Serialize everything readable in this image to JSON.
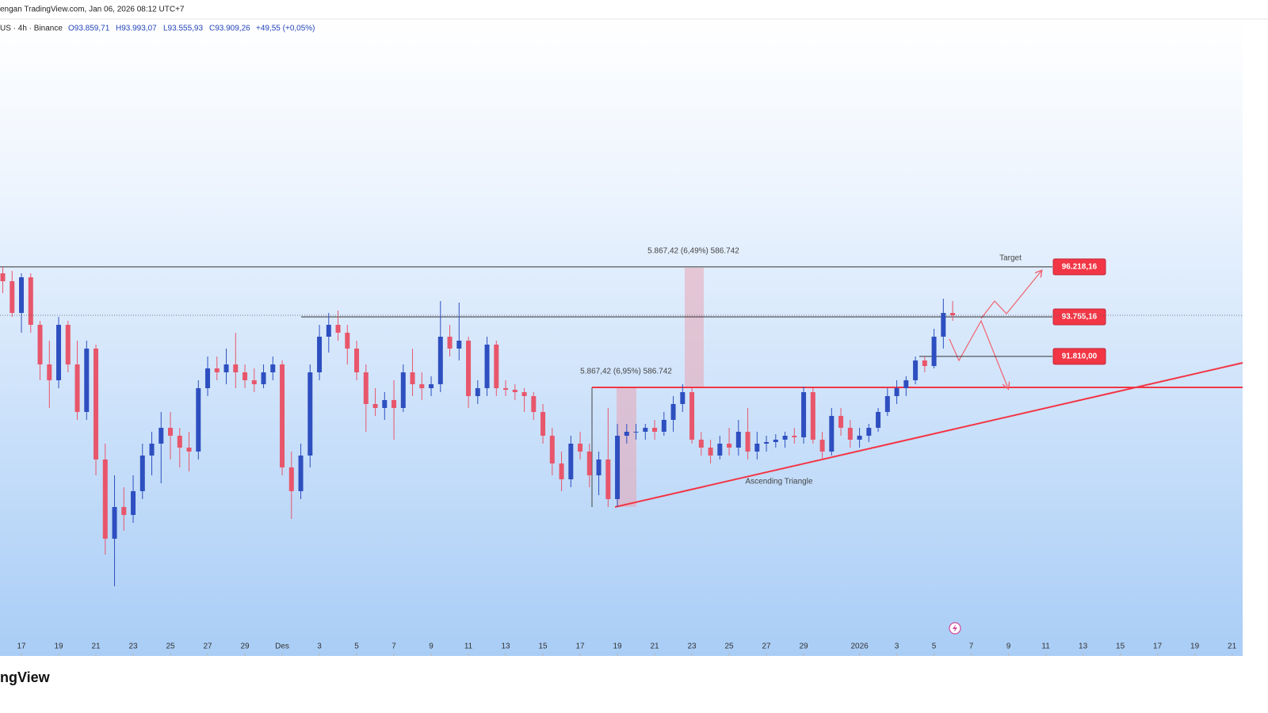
{
  "chart_data": {
    "type": "candlestick",
    "header": {
      "source": "engan TradingView.com, Jan 06, 2026 08:12 UTC+7",
      "symbol": "US · 4h · Binance",
      "open": "O93.859,71",
      "high": "H93.993,07",
      "low": "L93.555,93",
      "close": "C93.909,26",
      "change": "+49,55 (+0,05%)"
    },
    "logo": "ngView",
    "annotations": {
      "measure_top": "5.867,42 (6,49%) 586.742",
      "measure_bottom": "5.867,42 (6,95%) 586.742",
      "target": "Target",
      "pattern": "Ascending Triangle"
    },
    "levels": [
      {
        "label": "96.218,16",
        "value": 96218.16
      },
      {
        "label": "93.755,16",
        "value": 93755.16
      },
      {
        "label": "91.810,00",
        "value": 91810.0
      }
    ],
    "up_color": "#2e4fc0",
    "down_color": "#e8566b",
    "level_color": "#f23645",
    "xlim": [
      -1.15,
      65.57
    ],
    "ylim": [
      77063,
      108380
    ],
    "xticks": [
      {
        "value": 0,
        "label": "17"
      },
      {
        "value": 2,
        "label": "19"
      },
      {
        "value": 4,
        "label": "21"
      },
      {
        "value": 6,
        "label": "23"
      },
      {
        "value": 8,
        "label": "25"
      },
      {
        "value": 10,
        "label": "27"
      },
      {
        "value": 12,
        "label": "29"
      },
      {
        "value": 14,
        "label": "Des"
      },
      {
        "value": 16,
        "label": "3"
      },
      {
        "value": 18,
        "label": "5"
      },
      {
        "value": 20,
        "label": "7"
      },
      {
        "value": 22,
        "label": "9"
      },
      {
        "value": 24,
        "label": "11"
      },
      {
        "value": 26,
        "label": "13"
      },
      {
        "value": 28,
        "label": "15"
      },
      {
        "value": 30,
        "label": "17"
      },
      {
        "value": 32,
        "label": "19"
      },
      {
        "value": 34,
        "label": "21"
      },
      {
        "value": 36,
        "label": "23"
      },
      {
        "value": 38,
        "label": "25"
      },
      {
        "value": 40,
        "label": "27"
      },
      {
        "value": 42,
        "label": "29"
      },
      {
        "value": 45,
        "label": "2026"
      },
      {
        "value": 47,
        "label": "3"
      },
      {
        "value": 49,
        "label": "5"
      },
      {
        "value": 51,
        "label": "7"
      },
      {
        "value": 53,
        "label": "9"
      },
      {
        "value": 55,
        "label": "11"
      },
      {
        "value": 57,
        "label": "13"
      },
      {
        "value": 59,
        "label": "15"
      },
      {
        "value": 61,
        "label": "17"
      },
      {
        "value": 63,
        "label": "19"
      },
      {
        "value": 65,
        "label": "21"
      }
    ],
    "x": [
      -1,
      -0.5,
      0,
      0.5,
      1,
      1.5,
      2,
      2.5,
      3,
      3.5,
      4,
      4.5,
      5,
      5.5,
      6,
      6.5,
      7,
      7.5,
      8,
      8.5,
      9,
      9.5,
      10,
      10.5,
      11,
      11.5,
      12,
      12.5,
      13,
      13.5,
      14,
      14.5,
      15,
      15.5,
      16,
      16.5,
      17,
      17.5,
      18,
      18.5,
      19,
      19.5,
      20,
      20.5,
      21,
      21.5,
      22,
      22.5,
      23,
      23.5,
      24,
      24.5,
      25,
      25.5,
      26,
      26.5,
      27,
      27.5,
      28,
      28.5,
      29,
      29.5,
      30,
      30.5,
      31,
      31.5,
      32,
      32.5,
      33,
      33.5,
      34,
      34.5,
      35,
      35.5,
      36,
      36.5,
      37,
      37.5,
      38,
      38.5,
      39,
      39.5,
      40,
      40.5,
      41,
      41.5,
      42,
      42.5,
      43,
      43.5,
      44,
      44.5,
      45,
      45.5,
      46,
      46.5,
      47,
      47.5,
      48,
      48.5,
      49,
      49.5,
      50
    ],
    "candles": [
      [
        95900,
        96212,
        94925,
        95510
      ],
      [
        95510,
        96017,
        93755,
        93950
      ],
      [
        93950,
        95900,
        92975,
        95705
      ],
      [
        95705,
        95900,
        92975,
        93365
      ],
      [
        93365,
        93560,
        90635,
        91415
      ],
      [
        91415,
        92585,
        89270,
        90635
      ],
      [
        90635,
        93755,
        90245,
        93365
      ],
      [
        93365,
        93560,
        91025,
        91415
      ],
      [
        91415,
        92585,
        88685,
        89075
      ],
      [
        89075,
        92585,
        88685,
        92195
      ],
      [
        92195,
        92390,
        85955,
        86735
      ],
      [
        86735,
        87515,
        82055,
        82835
      ],
      [
        82835,
        85955,
        80495,
        84395
      ],
      [
        84395,
        85370,
        83225,
        84005
      ],
      [
        84005,
        85955,
        83615,
        85175
      ],
      [
        85175,
        87515,
        84785,
        86930
      ],
      [
        86930,
        88100,
        85955,
        87515
      ],
      [
        87515,
        89075,
        85565,
        88295
      ],
      [
        88295,
        89075,
        86735,
        87905
      ],
      [
        87905,
        88295,
        86345,
        87320
      ],
      [
        87320,
        88100,
        86150,
        87125
      ],
      [
        87125,
        90635,
        86735,
        90245
      ],
      [
        90245,
        91805,
        89855,
        91220
      ],
      [
        91220,
        91805,
        90635,
        91025
      ],
      [
        91025,
        92195,
        90440,
        91415
      ],
      [
        91415,
        92975,
        90245,
        91025
      ],
      [
        91025,
        91415,
        90245,
        90635
      ],
      [
        90635,
        91220,
        90050,
        90440
      ],
      [
        90440,
        91415,
        90245,
        91025
      ],
      [
        91025,
        91805,
        90635,
        91415
      ],
      [
        91415,
        91610,
        85955,
        86345
      ],
      [
        86345,
        87125,
        83810,
        85175
      ],
      [
        85175,
        87515,
        84785,
        86930
      ],
      [
        86930,
        91415,
        86345,
        91025
      ],
      [
        91025,
        93365,
        90635,
        92780
      ],
      [
        92780,
        93950,
        92000,
        93365
      ],
      [
        93365,
        94067,
        92585,
        92975
      ],
      [
        92975,
        93365,
        91415,
        92195
      ],
      [
        92195,
        92585,
        90635,
        91025
      ],
      [
        91025,
        91415,
        88100,
        89465
      ],
      [
        89465,
        90245,
        88880,
        89270
      ],
      [
        89270,
        90050,
        88685,
        89660
      ],
      [
        89660,
        90635,
        87710,
        89270
      ],
      [
        89270,
        91415,
        89075,
        91025
      ],
      [
        91025,
        92195,
        89855,
        90440
      ],
      [
        90440,
        91025,
        89660,
        90245
      ],
      [
        90245,
        90830,
        89855,
        90440
      ],
      [
        90440,
        94535,
        90050,
        92780
      ],
      [
        92780,
        93365,
        91805,
        92195
      ],
      [
        92195,
        94457,
        91610,
        92585
      ],
      [
        92585,
        92780,
        89270,
        89855
      ],
      [
        89855,
        90635,
        89465,
        90245
      ],
      [
        90245,
        92780,
        89855,
        92390
      ],
      [
        92390,
        92585,
        89855,
        90245
      ],
      [
        90245,
        90635,
        89855,
        90167
      ],
      [
        90167,
        90440,
        89660,
        90050
      ],
      [
        90050,
        90245,
        89075,
        89855
      ],
      [
        89855,
        90050,
        88685,
        89075
      ],
      [
        89075,
        89465,
        87515,
        87905
      ],
      [
        87905,
        88295,
        85955,
        86540
      ],
      [
        86540,
        87125,
        85175,
        85760
      ],
      [
        85760,
        87905,
        85370,
        87515
      ],
      [
        87515,
        88100,
        86735,
        87125
      ],
      [
        87125,
        87515,
        85370,
        85955
      ],
      [
        85955,
        87125,
        84980,
        86735
      ],
      [
        86735,
        89270,
        84395,
        84785
      ],
      [
        84785,
        88490,
        84395,
        87905
      ],
      [
        87905,
        88490,
        87515,
        88100
      ],
      [
        88100,
        88490,
        87710,
        88100
      ],
      [
        88100,
        88490,
        87710,
        88295
      ],
      [
        88295,
        88685,
        87710,
        88100
      ],
      [
        88100,
        89075,
        87905,
        88685
      ],
      [
        88685,
        89855,
        88100,
        89465
      ],
      [
        89465,
        90440,
        89075,
        90050
      ],
      [
        90050,
        90245,
        87515,
        87710
      ],
      [
        87710,
        88100,
        86930,
        87320
      ],
      [
        87320,
        87710,
        86540,
        86930
      ],
      [
        86930,
        87905,
        86735,
        87515
      ],
      [
        87515,
        88295,
        86930,
        87320
      ],
      [
        87320,
        88685,
        86930,
        88100
      ],
      [
        88100,
        89270,
        86735,
        87125
      ],
      [
        87125,
        88100,
        86735,
        87515
      ],
      [
        87515,
        87905,
        87125,
        87593
      ],
      [
        87593,
        87983,
        87320,
        87710
      ],
      [
        87710,
        88100,
        87320,
        87905
      ],
      [
        87905,
        88295,
        87515,
        87827
      ],
      [
        87827,
        90323,
        87515,
        90050
      ],
      [
        90050,
        90245,
        87515,
        87710
      ],
      [
        87710,
        88100,
        86735,
        87125
      ],
      [
        87125,
        89270,
        86930,
        88880
      ],
      [
        88880,
        89270,
        87905,
        88295
      ],
      [
        88295,
        88685,
        87320,
        87710
      ],
      [
        87710,
        88295,
        87320,
        87905
      ],
      [
        87905,
        88490,
        87593,
        88295
      ],
      [
        88295,
        89270,
        88100,
        89075
      ],
      [
        89075,
        90245,
        88880,
        89855
      ],
      [
        89855,
        90635,
        89465,
        90245
      ],
      [
        90245,
        90830,
        89855,
        90635
      ],
      [
        90635,
        91805,
        90440,
        91610
      ],
      [
        91610,
        91805,
        91025,
        91337
      ],
      [
        91337,
        93170,
        91220,
        92780
      ],
      [
        92780,
        94652,
        92195,
        93950
      ],
      [
        93950,
        94535,
        93560,
        93833
      ]
    ]
  }
}
